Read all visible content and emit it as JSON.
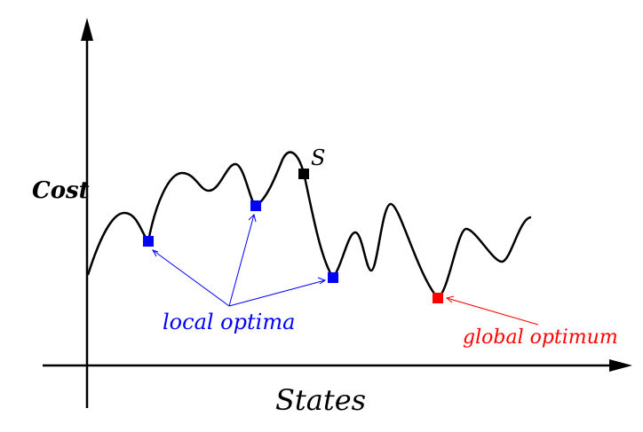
{
  "axes": {
    "y_label": "Cost",
    "x_label": "States"
  },
  "annotations": {
    "start_label": "S",
    "local_label": "local optima",
    "global_label": "global optimum"
  },
  "colors": {
    "curve": "#000000",
    "local": "#0000ff",
    "global": "#ff0000",
    "start": "#000000"
  }
}
